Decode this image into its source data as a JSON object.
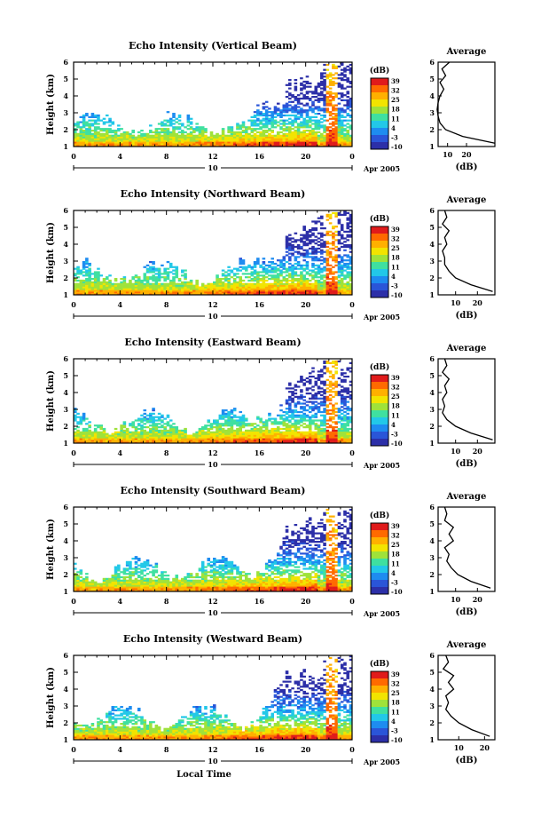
{
  "figure": {
    "xlabel": "Local Time",
    "ylabel": "Height (km)",
    "date_axis": {
      "day": "10",
      "suffix": "Apr 2005"
    },
    "x_ticks": [
      "0",
      "4",
      "8",
      "12",
      "16",
      "20",
      "0"
    ],
    "y_ticks": [
      "1",
      "2",
      "3",
      "4",
      "5",
      "6"
    ],
    "colorbar": {
      "unit": "(dB)",
      "labels": [
        "39",
        "32",
        "25",
        "18",
        "11",
        "4",
        "-3",
        "-10"
      ],
      "colors": [
        "#e01b1b",
        "#ff6a00",
        "#ffb000",
        "#f2e400",
        "#9fe23a",
        "#3fe0a0",
        "#22c8e8",
        "#1e8cf0",
        "#2a55d8",
        "#2c2fa8"
      ]
    },
    "profile_title": "Average",
    "profile_xlabel": "(dB)"
  },
  "chart_data": [
    {
      "type": "heatmap",
      "title": "Echo Intensity (Vertical Beam)",
      "xlabel": "Local Time",
      "ylabel": "Height (km)",
      "xlim": [
        0,
        24
      ],
      "ylim": [
        1,
        6
      ],
      "zlim": [
        -10,
        39
      ],
      "profile": {
        "title": "Average",
        "xlabel": "(dB)",
        "x_ticks": [
          "10",
          "20"
        ],
        "xlim": [
          5,
          35
        ],
        "heights": [
          1.2,
          1.6,
          2.0,
          2.4,
          2.8,
          3.2,
          3.6,
          4.0,
          4.4,
          4.8,
          5.2,
          5.6,
          6.0
        ],
        "values": [
          35,
          18,
          9,
          6,
          5,
          4.5,
          5,
          6,
          8,
          6,
          9,
          7,
          11
        ]
      }
    },
    {
      "type": "heatmap",
      "title": "Echo Intensity (Northward Beam)",
      "xlabel": "Local Time",
      "ylabel": "Height (km)",
      "xlim": [
        0,
        24
      ],
      "ylim": [
        1,
        6
      ],
      "zlim": [
        -10,
        39
      ],
      "profile": {
        "title": "Average",
        "xlabel": "(dB)",
        "x_ticks": [
          "10",
          "20"
        ],
        "xlim": [
          2,
          28
        ],
        "heights": [
          1.2,
          1.6,
          2.0,
          2.4,
          2.8,
          3.2,
          3.6,
          4.0,
          4.4,
          4.8,
          5.2,
          5.6,
          6.0
        ],
        "values": [
          27,
          17,
          10,
          7,
          5,
          5,
          4,
          6,
          5,
          7,
          4,
          6,
          5
        ]
      }
    },
    {
      "type": "heatmap",
      "title": "Echo Intensity (Eastward Beam)",
      "xlabel": "Local Time",
      "ylabel": "Height (km)",
      "xlim": [
        0,
        24
      ],
      "ylim": [
        1,
        6
      ],
      "zlim": [
        -10,
        39
      ],
      "profile": {
        "title": "Average",
        "xlabel": "(dB)",
        "x_ticks": [
          "10",
          "20"
        ],
        "xlim": [
          2,
          28
        ],
        "heights": [
          1.2,
          1.6,
          2.0,
          2.4,
          2.8,
          3.2,
          3.6,
          4.0,
          4.4,
          4.8,
          5.2,
          5.6,
          6.0
        ],
        "values": [
          27,
          17,
          10,
          6,
          4,
          5,
          4,
          6,
          5,
          7,
          4,
          6,
          5
        ]
      }
    },
    {
      "type": "heatmap",
      "title": "Echo Intensity (Southward Beam)",
      "xlabel": "Local Time",
      "ylabel": "Height (km)",
      "xlim": [
        0,
        24
      ],
      "ylim": [
        1,
        6
      ],
      "zlim": [
        -10,
        39
      ],
      "profile": {
        "title": "Average",
        "xlabel": "(dB)",
        "x_ticks": [
          "10",
          "20"
        ],
        "xlim": [
          2,
          28
        ],
        "heights": [
          1.2,
          1.6,
          2.0,
          2.4,
          2.8,
          3.2,
          3.6,
          4.0,
          4.4,
          4.8,
          5.2,
          5.6,
          6.0
        ],
        "values": [
          26,
          17,
          11,
          8,
          6,
          7,
          5,
          9,
          7,
          9,
          5,
          6,
          5
        ]
      }
    },
    {
      "type": "heatmap",
      "title": "Echo Intensity (Westward Beam)",
      "xlabel": "Local Time",
      "ylabel": "Height (km)",
      "xlim": [
        0,
        24
      ],
      "ylim": [
        1,
        6
      ],
      "zlim": [
        -10,
        39
      ],
      "profile": {
        "title": "Average",
        "xlabel": "(dB)",
        "x_ticks": [
          "10",
          "20"
        ],
        "xlim": [
          2,
          24
        ],
        "heights": [
          1.2,
          1.6,
          2.0,
          2.4,
          2.8,
          3.2,
          3.6,
          4.0,
          4.4,
          4.8,
          5.2,
          5.6,
          6.0
        ],
        "values": [
          22,
          15,
          10,
          7,
          5,
          6,
          5,
          8,
          6,
          8,
          4,
          6,
          5
        ]
      }
    }
  ]
}
